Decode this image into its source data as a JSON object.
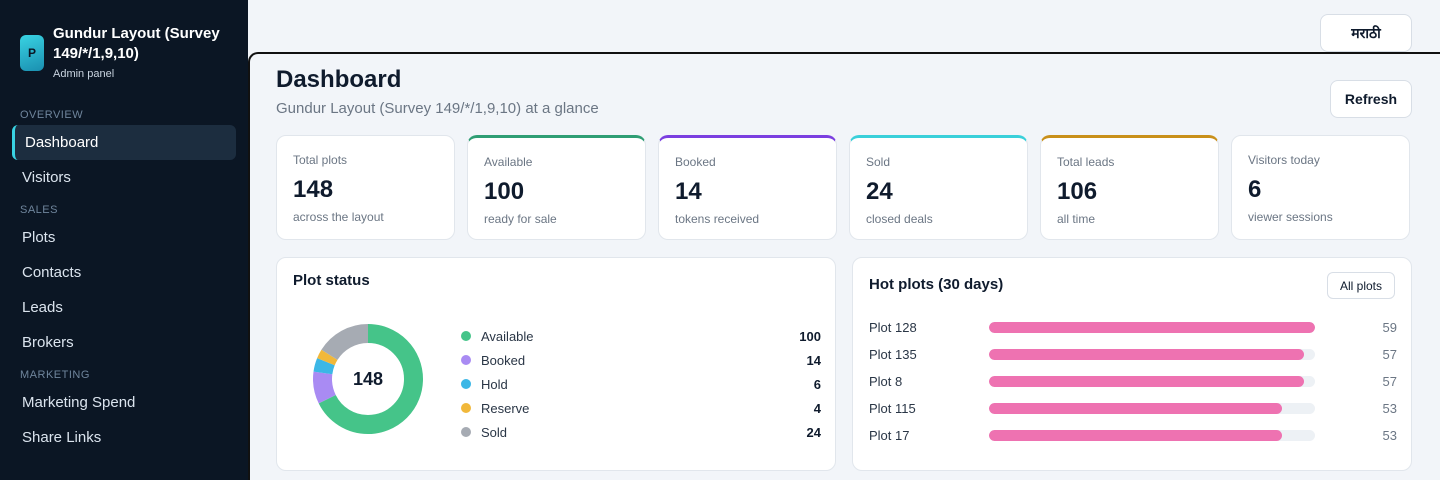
{
  "sidebar": {
    "brand_logo": "P",
    "brand_title": "Gundur Layout (Survey 149/*/1,9,10)",
    "brand_sub": "Admin panel",
    "sections": [
      {
        "label": "Overview",
        "items": [
          {
            "label": "Dashboard",
            "active": true
          },
          {
            "label": "Visitors"
          }
        ]
      },
      {
        "label": "Sales",
        "items": [
          {
            "label": "Plots"
          },
          {
            "label": "Contacts"
          },
          {
            "label": "Leads"
          },
          {
            "label": "Brokers"
          }
        ]
      },
      {
        "label": "Marketing",
        "items": [
          {
            "label": "Marketing Spend"
          },
          {
            "label": "Share Links"
          }
        ]
      }
    ]
  },
  "topbar": {
    "language_label": "मराठी"
  },
  "header": {
    "title": "Dashboard",
    "subtitle": "Gundur Layout (Survey 149/*/1,9,10) at a glance",
    "refresh_label": "Refresh"
  },
  "stats": [
    {
      "label": "Total plots",
      "value": "148",
      "note": "across the layout",
      "accent": "#ffffff"
    },
    {
      "label": "Available",
      "value": "100",
      "note": "ready for sale",
      "accent": "#2f9e74"
    },
    {
      "label": "Booked",
      "value": "14",
      "note": "tokens received",
      "accent": "#7b3fe0"
    },
    {
      "label": "Sold",
      "value": "24",
      "note": "closed deals",
      "accent": "#3ad0da"
    },
    {
      "label": "Total leads",
      "value": "106",
      "note": "all time",
      "accent": "#c9901a"
    },
    {
      "label": "Visitors today",
      "value": "6",
      "note": "viewer sessions",
      "accent": "#ffffff"
    }
  ],
  "plot_status": {
    "title": "Plot status",
    "total": "148",
    "items": [
      {
        "label": "Available",
        "value": 100,
        "color": "#45c489"
      },
      {
        "label": "Booked",
        "value": 14,
        "color": "#a98bf3"
      },
      {
        "label": "Hold",
        "value": 6,
        "color": "#3cb7e6"
      },
      {
        "label": "Reserve",
        "value": 4,
        "color": "#f1b83a"
      },
      {
        "label": "Sold",
        "value": 24,
        "color": "#a6abb3"
      }
    ]
  },
  "hot_plots": {
    "title": "Hot plots (30 days)",
    "all_label": "All plots",
    "max": 59,
    "items": [
      {
        "label": "Plot 128",
        "value": 59
      },
      {
        "label": "Plot 135",
        "value": 57
      },
      {
        "label": "Plot 8",
        "value": 57
      },
      {
        "label": "Plot 115",
        "value": 53
      },
      {
        "label": "Plot 17",
        "value": 53
      }
    ]
  }
}
